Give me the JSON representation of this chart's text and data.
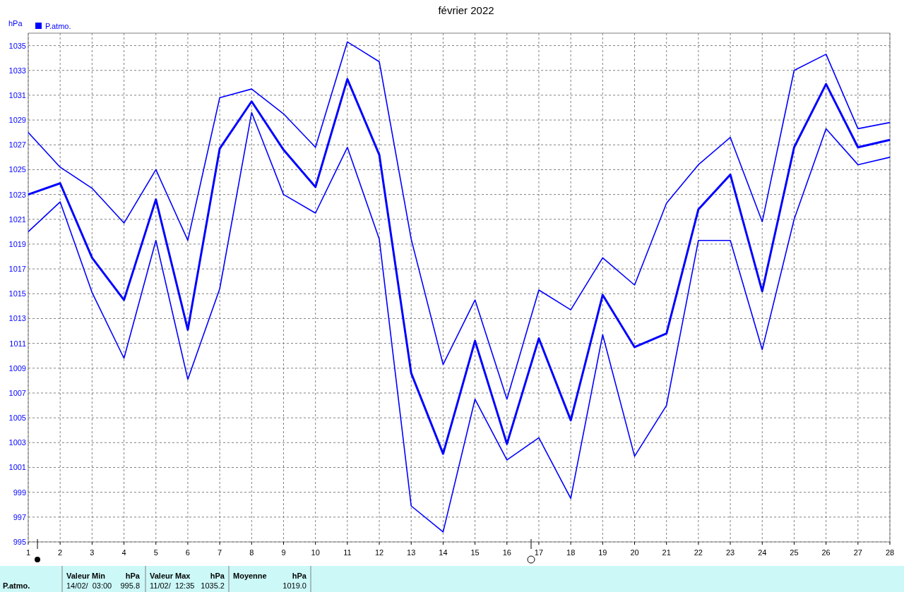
{
  "chart_data": {
    "type": "line",
    "title": "février 2022",
    "ylabel": "hPa",
    "x": [
      1,
      2,
      3,
      4,
      5,
      6,
      7,
      8,
      9,
      10,
      11,
      12,
      13,
      14,
      15,
      16,
      17,
      18,
      19,
      20,
      21,
      22,
      23,
      24,
      25,
      26,
      27,
      28
    ],
    "series": [
      {
        "name": "P.atmo.",
        "color": "#0000ff",
        "values": [
          1023.0,
          1023.9,
          1017.9,
          1014.5,
          1022.6,
          1012.1,
          1026.7,
          1030.5,
          1026.6,
          1023.6,
          1032.3,
          1026.2,
          1008.6,
          1002.1,
          1011.2,
          1002.9,
          1011.4,
          1004.8,
          1014.9,
          1010.7,
          1011.8,
          1021.8,
          1024.6,
          1015.2,
          1026.8,
          1031.9,
          1026.8,
          1027.4
        ]
      },
      {
        "color": "#0000ff",
        "values": [
          1028.0,
          1025.2,
          1023.5,
          1020.7,
          1025.0,
          1019.3,
          1030.8,
          1031.5,
          1029.5,
          1026.8,
          1035.3,
          1033.7,
          1019.4,
          1009.3,
          1014.5,
          1006.5,
          1015.3,
          1013.7,
          1017.9,
          1015.7,
          1022.3,
          1025.4,
          1027.6,
          1020.8,
          1033.0,
          1034.3,
          1028.3,
          1028.8
        ]
      },
      {
        "color": "#0000ff",
        "values": [
          1020.0,
          1022.4,
          1015.1,
          1009.8,
          1019.3,
          1008.1,
          1015.4,
          1029.6,
          1023.0,
          1021.5,
          1026.8,
          1019.4,
          997.9,
          995.8,
          1006.5,
          1001.6,
          1003.4,
          998.5,
          1011.7,
          1001.9,
          1006.0,
          1019.3,
          1019.3,
          1010.5,
          1021.0,
          1028.3,
          1025.4,
          1026.0
        ]
      }
    ],
    "xlim": [
      1,
      28
    ],
    "xticks": [
      1,
      2,
      3,
      4,
      5,
      6,
      7,
      8,
      9,
      10,
      11,
      12,
      13,
      14,
      15,
      16,
      17,
      18,
      19,
      20,
      21,
      22,
      23,
      24,
      25,
      26,
      27,
      28
    ],
    "ylim": [
      995,
      1036
    ],
    "yticks": [
      995,
      997,
      999,
      1001,
      1003,
      1005,
      1007,
      1009,
      1011,
      1013,
      1015,
      1017,
      1019,
      1021,
      1023,
      1025,
      1027,
      1029,
      1031,
      1033,
      1035
    ],
    "grid": true,
    "legend": "top left",
    "marker": "none",
    "line_style": "solid",
    "annotations": [
      "P.atmo.",
      "Valeur Min",
      "hPa",
      "14/02/  03:00",
      "995.8",
      "Valeur Max",
      "hPa",
      "11/02/  12:35",
      "1035.2",
      "Moyenne",
      "hPa",
      "1019.0"
    ]
  }
}
